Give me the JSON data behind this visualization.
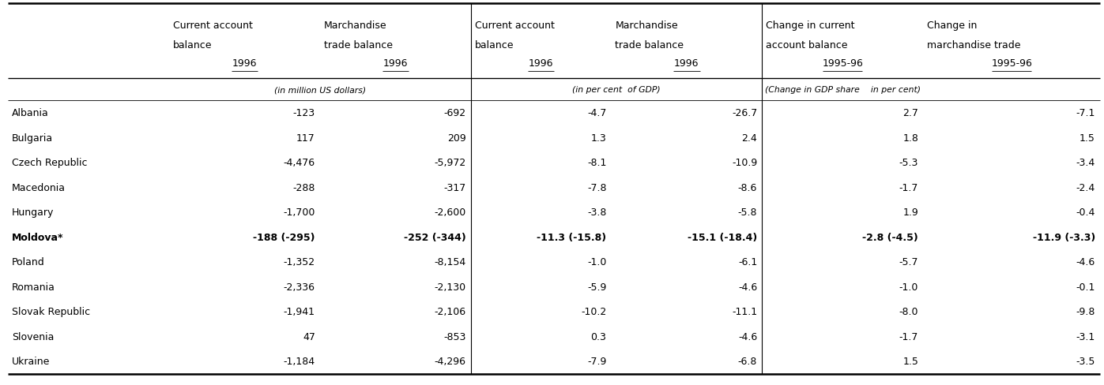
{
  "header_rows": [
    [
      "",
      "Current account\nbalance\n1996",
      "Marchandise\ntrade balance\n1996",
      "Current account\nbalance\n1996",
      "Marchandise\ntrade balance\n1996",
      "Change in current\naccount balance\n1995-96",
      "Change in\nmarchandise trade\n1995-96"
    ],
    [
      "",
      "(in million US dollars)",
      "",
      "(in per cent  of GDP)",
      "",
      "(Change in GDP share    in per cent)",
      ""
    ]
  ],
  "rows": [
    {
      "name": "Albania",
      "bold": false,
      "values": [
        "-123",
        "-692",
        "-4.7",
        "-26.7",
        "2.7",
        "-7.1"
      ]
    },
    {
      "name": "Bulgaria",
      "bold": false,
      "values": [
        "117",
        "209",
        "1.3",
        "2.4",
        "1.8",
        "1.5"
      ]
    },
    {
      "name": "Czech Republic",
      "bold": false,
      "values": [
        "-4,476",
        "-5,972",
        "-8.1",
        "-10.9",
        "-5.3",
        "-3.4"
      ]
    },
    {
      "name": "Macedonia",
      "bold": false,
      "values": [
        "-288",
        "-317",
        "-7.8",
        "-8.6",
        "-1.7",
        "-2.4"
      ]
    },
    {
      "name": "Hungary",
      "bold": false,
      "values": [
        "-1,700",
        "-2,600",
        "-3.8",
        "-5.8",
        "1.9",
        "-0.4"
      ]
    },
    {
      "name": "Moldova*",
      "bold": true,
      "values": [
        "-188 (-295)",
        "-252 (-344)",
        "-11.3 (-15.8)",
        "-15.1 (-18.4)",
        "-2.8 (-4.5)",
        "-11.9 (-3.3)"
      ]
    },
    {
      "name": "Poland",
      "bold": false,
      "values": [
        "-1,352",
        "-8,154",
        "-1.0",
        "-6.1",
        "-5.7",
        "-4.6"
      ]
    },
    {
      "name": "Romania",
      "bold": false,
      "values": [
        "-2,336",
        "-2,130",
        "-5.9",
        "-4.6",
        "-1.0",
        "-0.1"
      ]
    },
    {
      "name": "Slovak Republic",
      "bold": false,
      "values": [
        "-1,941",
        "-2,106",
        "-10.2",
        "-11.1",
        "-8.0",
        "-9.8"
      ]
    },
    {
      "name": "Slovenia",
      "bold": false,
      "values": [
        "47",
        "-853",
        "0.3",
        "-4.6",
        "-1.7",
        "-3.1"
      ]
    },
    {
      "name": "Ukraine",
      "bold": false,
      "values": [
        "-1,184",
        "-4,296",
        "-7.9",
        "-6.8",
        "1.5",
        "-3.5"
      ]
    }
  ],
  "col_group_separators_after_col": [
    2,
    4
  ],
  "subheader_texts": [
    "(in million US dollars)",
    "(in per cent  of GDP)",
    "(Change in GDP share    in per cent)"
  ],
  "font_size": 9.0,
  "font_size_sub": 7.8,
  "font_family": "DejaVu Sans"
}
